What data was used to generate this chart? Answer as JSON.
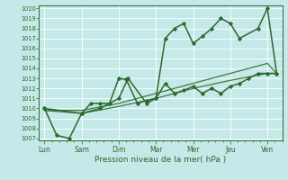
{
  "xlabel": "Pression niveau de la mer( hPa )",
  "bg_color": "#c5e8e8",
  "grid_color": "#aad4d4",
  "line_color_dark": "#2d6a2d",
  "line_color_mid": "#3d7a3d",
  "ylim": [
    1007,
    1020
  ],
  "yticks": [
    1007,
    1008,
    1009,
    1010,
    1011,
    1012,
    1013,
    1014,
    1015,
    1016,
    1017,
    1018,
    1019,
    1020
  ],
  "x_labels": [
    "Lun",
    "Sam",
    "Dim",
    "Mar",
    "Mer",
    "Jeu",
    "Ven"
  ],
  "x_positions": [
    0,
    1,
    2,
    3,
    4,
    5,
    6
  ],
  "series": [
    {
      "x": [
        0.0,
        0.33,
        0.67,
        1.0,
        1.25,
        1.5,
        1.75,
        2.0,
        2.2,
        2.5,
        2.75,
        3.0,
        3.25,
        3.5,
        3.75,
        4.0,
        4.25,
        4.5,
        4.75,
        5.0,
        5.25,
        5.5,
        5.75,
        6.0,
        6.25
      ],
      "y": [
        1010.0,
        1007.3,
        1007.0,
        1009.5,
        1010.5,
        1010.5,
        1010.5,
        1013.0,
        1012.9,
        1010.5,
        1010.8,
        1011.0,
        1012.5,
        1011.5,
        1011.8,
        1012.2,
        1011.5,
        1012.0,
        1011.5,
        1012.2,
        1012.5,
        1013.0,
        1013.5,
        1013.5,
        1013.5
      ],
      "color": "#2d6a2d",
      "lw": 1.1,
      "marker": "D",
      "ms": 2.2
    },
    {
      "x": [
        0.0,
        1.0,
        2.0,
        3.0,
        4.0,
        5.0,
        6.0,
        6.25
      ],
      "y": [
        1009.8,
        1009.5,
        1010.2,
        1011.0,
        1012.0,
        1012.8,
        1013.5,
        1013.5
      ],
      "color": "#3d7a3d",
      "lw": 0.9,
      "marker": null,
      "ms": 0
    },
    {
      "x": [
        0.0,
        1.0,
        1.5,
        2.0,
        2.25,
        2.75,
        3.0,
        3.25,
        3.5,
        3.75,
        4.0,
        4.25,
        4.5,
        4.75,
        5.0,
        5.25,
        5.75,
        6.0,
        6.25
      ],
      "y": [
        1010.0,
        1009.5,
        1010.0,
        1011.0,
        1013.0,
        1010.5,
        1011.0,
        1017.0,
        1018.0,
        1018.5,
        1016.5,
        1017.2,
        1018.0,
        1019.0,
        1018.5,
        1017.0,
        1018.0,
        1020.0,
        1013.5
      ],
      "color": "#2d6a2d",
      "lw": 1.1,
      "marker": "D",
      "ms": 2.2
    },
    {
      "x": [
        0.0,
        1.0,
        2.0,
        3.0,
        4.0,
        5.0,
        6.0,
        6.25
      ],
      "y": [
        1009.8,
        1009.8,
        1010.5,
        1011.5,
        1012.5,
        1013.5,
        1014.5,
        1013.5
      ],
      "color": "#3d7a3d",
      "lw": 0.9,
      "marker": null,
      "ms": 0
    }
  ]
}
